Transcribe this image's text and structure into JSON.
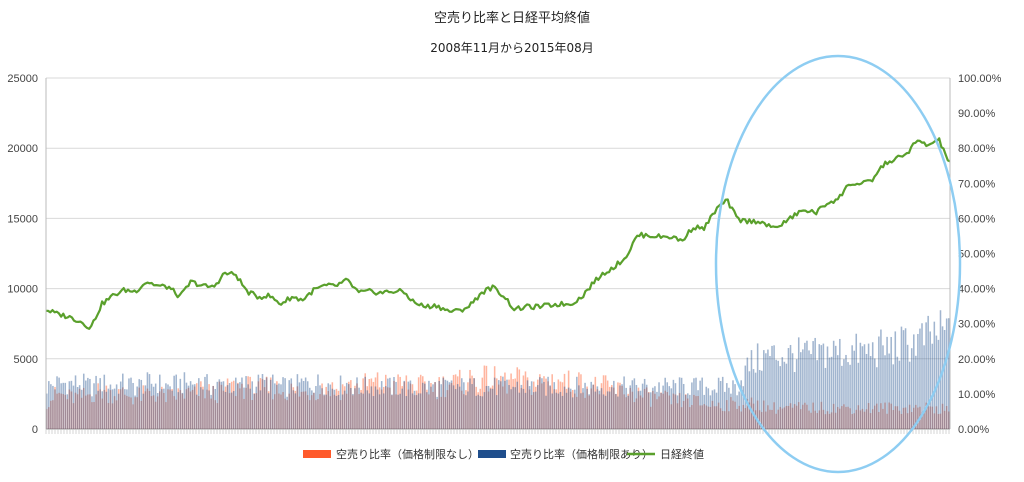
{
  "chart_data": {
    "type": "bar+line",
    "title": "空売り比率と日経平均終値",
    "subtitle": "2008年11月から2015年08月",
    "y_left": {
      "min": 0,
      "max": 25000,
      "ticks": [
        "0",
        "5000",
        "10000",
        "15000",
        "20000",
        "25000"
      ]
    },
    "y_right": {
      "min": 0,
      "max": 1,
      "ticks": [
        "0.00%",
        "10.00%",
        "20.00%",
        "30.00%",
        "40.00%",
        "50.00%",
        "60.00%",
        "70.00%",
        "80.00%",
        "90.00%",
        "100.00%"
      ]
    },
    "x": {
      "start": "2008-11",
      "end": "2015-08"
    },
    "grid": true,
    "legend_position": "bottom",
    "series": [
      {
        "name": "空売り比率（価格制限なし）",
        "type": "bar",
        "axis": "right",
        "color": "#ff5a2b",
        "monthly_values": [
          0.08,
          0.1,
          0.09,
          0.09,
          0.1,
          0.11,
          0.1,
          0.1,
          0.09,
          0.1,
          0.1,
          0.09,
          0.1,
          0.1,
          0.11,
          0.1,
          0.11,
          0.12,
          0.12,
          0.11,
          0.12,
          0.11,
          0.11,
          0.1,
          0.11,
          0.12,
          0.11,
          0.12,
          0.12,
          0.13,
          0.13,
          0.12,
          0.13,
          0.12,
          0.12,
          0.12,
          0.13,
          0.13,
          0.14,
          0.14,
          0.14,
          0.13,
          0.14,
          0.13,
          0.13,
          0.14,
          0.14,
          0.13,
          0.13,
          0.12,
          0.12,
          0.11,
          0.11,
          0.1,
          0.09,
          0.09,
          0.08,
          0.08,
          0.08,
          0.07,
          0.07,
          0.07,
          0.07,
          0.07,
          0.07,
          0.06,
          0.06,
          0.06,
          0.06,
          0.06,
          0.06,
          0.06,
          0.06,
          0.06,
          0.06,
          0.06,
          0.06,
          0.06,
          0.06,
          0.06,
          0.06,
          0.05
        ]
      },
      {
        "name": "空売り比率（価格制限あり）",
        "type": "bar",
        "axis": "right",
        "color": "#1f4e8c",
        "monthly_values": [
          0.12,
          0.13,
          0.13,
          0.13,
          0.12,
          0.13,
          0.12,
          0.13,
          0.12,
          0.13,
          0.13,
          0.12,
          0.13,
          0.13,
          0.13,
          0.12,
          0.13,
          0.12,
          0.13,
          0.13,
          0.13,
          0.12,
          0.12,
          0.13,
          0.13,
          0.13,
          0.12,
          0.13,
          0.12,
          0.12,
          0.12,
          0.12,
          0.12,
          0.11,
          0.12,
          0.12,
          0.12,
          0.12,
          0.12,
          0.12,
          0.12,
          0.12,
          0.12,
          0.12,
          0.12,
          0.12,
          0.12,
          0.12,
          0.12,
          0.12,
          0.12,
          0.12,
          0.12,
          0.12,
          0.12,
          0.12,
          0.12,
          0.12,
          0.12,
          0.12,
          0.12,
          0.12,
          0.12,
          0.18,
          0.2,
          0.21,
          0.21,
          0.21,
          0.21,
          0.21,
          0.22,
          0.22,
          0.22,
          0.22,
          0.22,
          0.23,
          0.23,
          0.24,
          0.25,
          0.26,
          0.27,
          0.28
        ]
      },
      {
        "name": "日経終値",
        "type": "line",
        "axis": "left",
        "color": "#5aa02c",
        "x": [
          "2008-11",
          "2008-12",
          "2009-01",
          "2009-02",
          "2009-03",
          "2009-04",
          "2009-05",
          "2009-06",
          "2009-07",
          "2009-08",
          "2009-09",
          "2009-10",
          "2009-11",
          "2009-12",
          "2010-01",
          "2010-02",
          "2010-03",
          "2010-04",
          "2010-05",
          "2010-06",
          "2010-07",
          "2010-08",
          "2010-09",
          "2010-10",
          "2010-11",
          "2010-12",
          "2011-01",
          "2011-02",
          "2011-03",
          "2011-04",
          "2011-05",
          "2011-06",
          "2011-07",
          "2011-08",
          "2011-09",
          "2011-10",
          "2011-11",
          "2011-12",
          "2012-01",
          "2012-02",
          "2012-03",
          "2012-04",
          "2012-05",
          "2012-06",
          "2012-07",
          "2012-08",
          "2012-09",
          "2012-10",
          "2012-11",
          "2012-12",
          "2013-01",
          "2013-02",
          "2013-03",
          "2013-04",
          "2013-05",
          "2013-06",
          "2013-07",
          "2013-08",
          "2013-09",
          "2013-10",
          "2013-11",
          "2013-12",
          "2014-01",
          "2014-02",
          "2014-03",
          "2014-04",
          "2014-05",
          "2014-06",
          "2014-07",
          "2014-08",
          "2014-09",
          "2014-10",
          "2014-11",
          "2014-12",
          "2015-01",
          "2015-02",
          "2015-03",
          "2015-04",
          "2015-05",
          "2015-06",
          "2015-07",
          "2015-08"
        ],
        "values": [
          8500,
          8200,
          8000,
          7700,
          7200,
          8900,
          9500,
          9900,
          9800,
          10500,
          10200,
          10100,
          9400,
          10500,
          10200,
          10100,
          11100,
          11000,
          9800,
          9400,
          9500,
          8900,
          9400,
          9200,
          9900,
          10200,
          10200,
          10600,
          9700,
          9800,
          9700,
          9800,
          9800,
          9000,
          8700,
          8800,
          8400,
          8400,
          8800,
          9700,
          10100,
          9500,
          8500,
          8700,
          8700,
          8800,
          8900,
          8900,
          9400,
          10400,
          11100,
          11600,
          12300,
          13800,
          13800,
          13700,
          13700,
          13400,
          14400,
          14300,
          15600,
          16300,
          14900,
          14800,
          14800,
          14300,
          14600,
          15200,
          15600,
          15400,
          16100,
          16400,
          17500,
          17400,
          17700,
          18800,
          19200,
          19500,
          20500,
          20200,
          20600,
          18900
        ]
      }
    ]
  }
}
